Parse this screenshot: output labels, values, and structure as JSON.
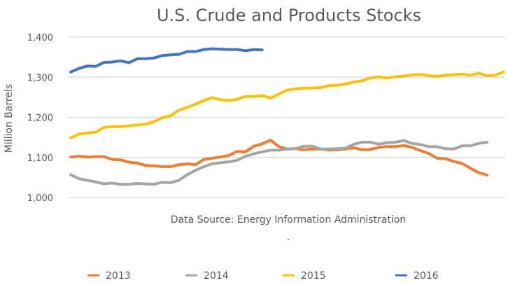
{
  "chart_data": {
    "type": "line",
    "title": "U.S. Crude and Products Stocks",
    "xlabel": "",
    "ylabel": "Million Barrels",
    "ylim": [
      1000,
      1400
    ],
    "yticks": [
      1000,
      1100,
      1200,
      1300,
      1400
    ],
    "ytick_labels": [
      "1,000",
      "1,100",
      "1,200",
      "1,300",
      "1,400"
    ],
    "grid": true,
    "legend_position": "bottom",
    "annotation": "Data Source: Energy Information Administration",
    "annotation_dot": ".",
    "x_unit": "week of year",
    "series": [
      {
        "name": "2013",
        "color": "#ED7D31",
        "values": [
          1101,
          1103,
          1101,
          1102,
          1102,
          1095,
          1094,
          1088,
          1086,
          1080,
          1079,
          1077,
          1077,
          1082,
          1084,
          1082,
          1095,
          1098,
          1101,
          1105,
          1115,
          1114,
          1128,
          1134,
          1143,
          1127,
          1121,
          1122,
          1119,
          1121,
          1121,
          1118,
          1119,
          1121,
          1124,
          1119,
          1120,
          1125,
          1127,
          1127,
          1130,
          1125,
          1117,
          1110,
          1098,
          1097,
          1090,
          1085,
          1073,
          1062,
          1056
        ]
      },
      {
        "name": "2014",
        "color": "#A5A5A5",
        "values": [
          1057,
          1047,
          1043,
          1039,
          1034,
          1036,
          1033,
          1033,
          1035,
          1034,
          1033,
          1038,
          1037,
          1043,
          1057,
          1068,
          1077,
          1084,
          1087,
          1089,
          1093,
          1103,
          1109,
          1114,
          1118,
          1118,
          1121,
          1122,
          1128,
          1128,
          1121,
          1121,
          1122,
          1123,
          1133,
          1138,
          1138,
          1133,
          1137,
          1138,
          1142,
          1135,
          1132,
          1127,
          1127,
          1122,
          1121,
          1129,
          1129,
          1135,
          1138
        ]
      },
      {
        "name": "2015",
        "color": "#FFC000",
        "values": [
          1149,
          1158,
          1161,
          1163,
          1175,
          1177,
          1177,
          1179,
          1181,
          1183,
          1189,
          1199,
          1204,
          1218,
          1225,
          1233,
          1242,
          1249,
          1244,
          1242,
          1245,
          1252,
          1252,
          1254,
          1248,
          1258,
          1268,
          1271,
          1273,
          1273,
          1274,
          1279,
          1280,
          1283,
          1288,
          1291,
          1298,
          1301,
          1298,
          1301,
          1303,
          1306,
          1307,
          1304,
          1302,
          1305,
          1306,
          1308,
          1305,
          1310,
          1304,
          1305,
          1313
        ]
      },
      {
        "name": "2016",
        "color": "#4472C4",
        "values": [
          1313,
          1322,
          1328,
          1327,
          1337,
          1338,
          1341,
          1336,
          1346,
          1346,
          1348,
          1354,
          1356,
          1357,
          1364,
          1364,
          1369,
          1371,
          1370,
          1369,
          1369,
          1366,
          1369,
          1368
        ]
      }
    ]
  }
}
